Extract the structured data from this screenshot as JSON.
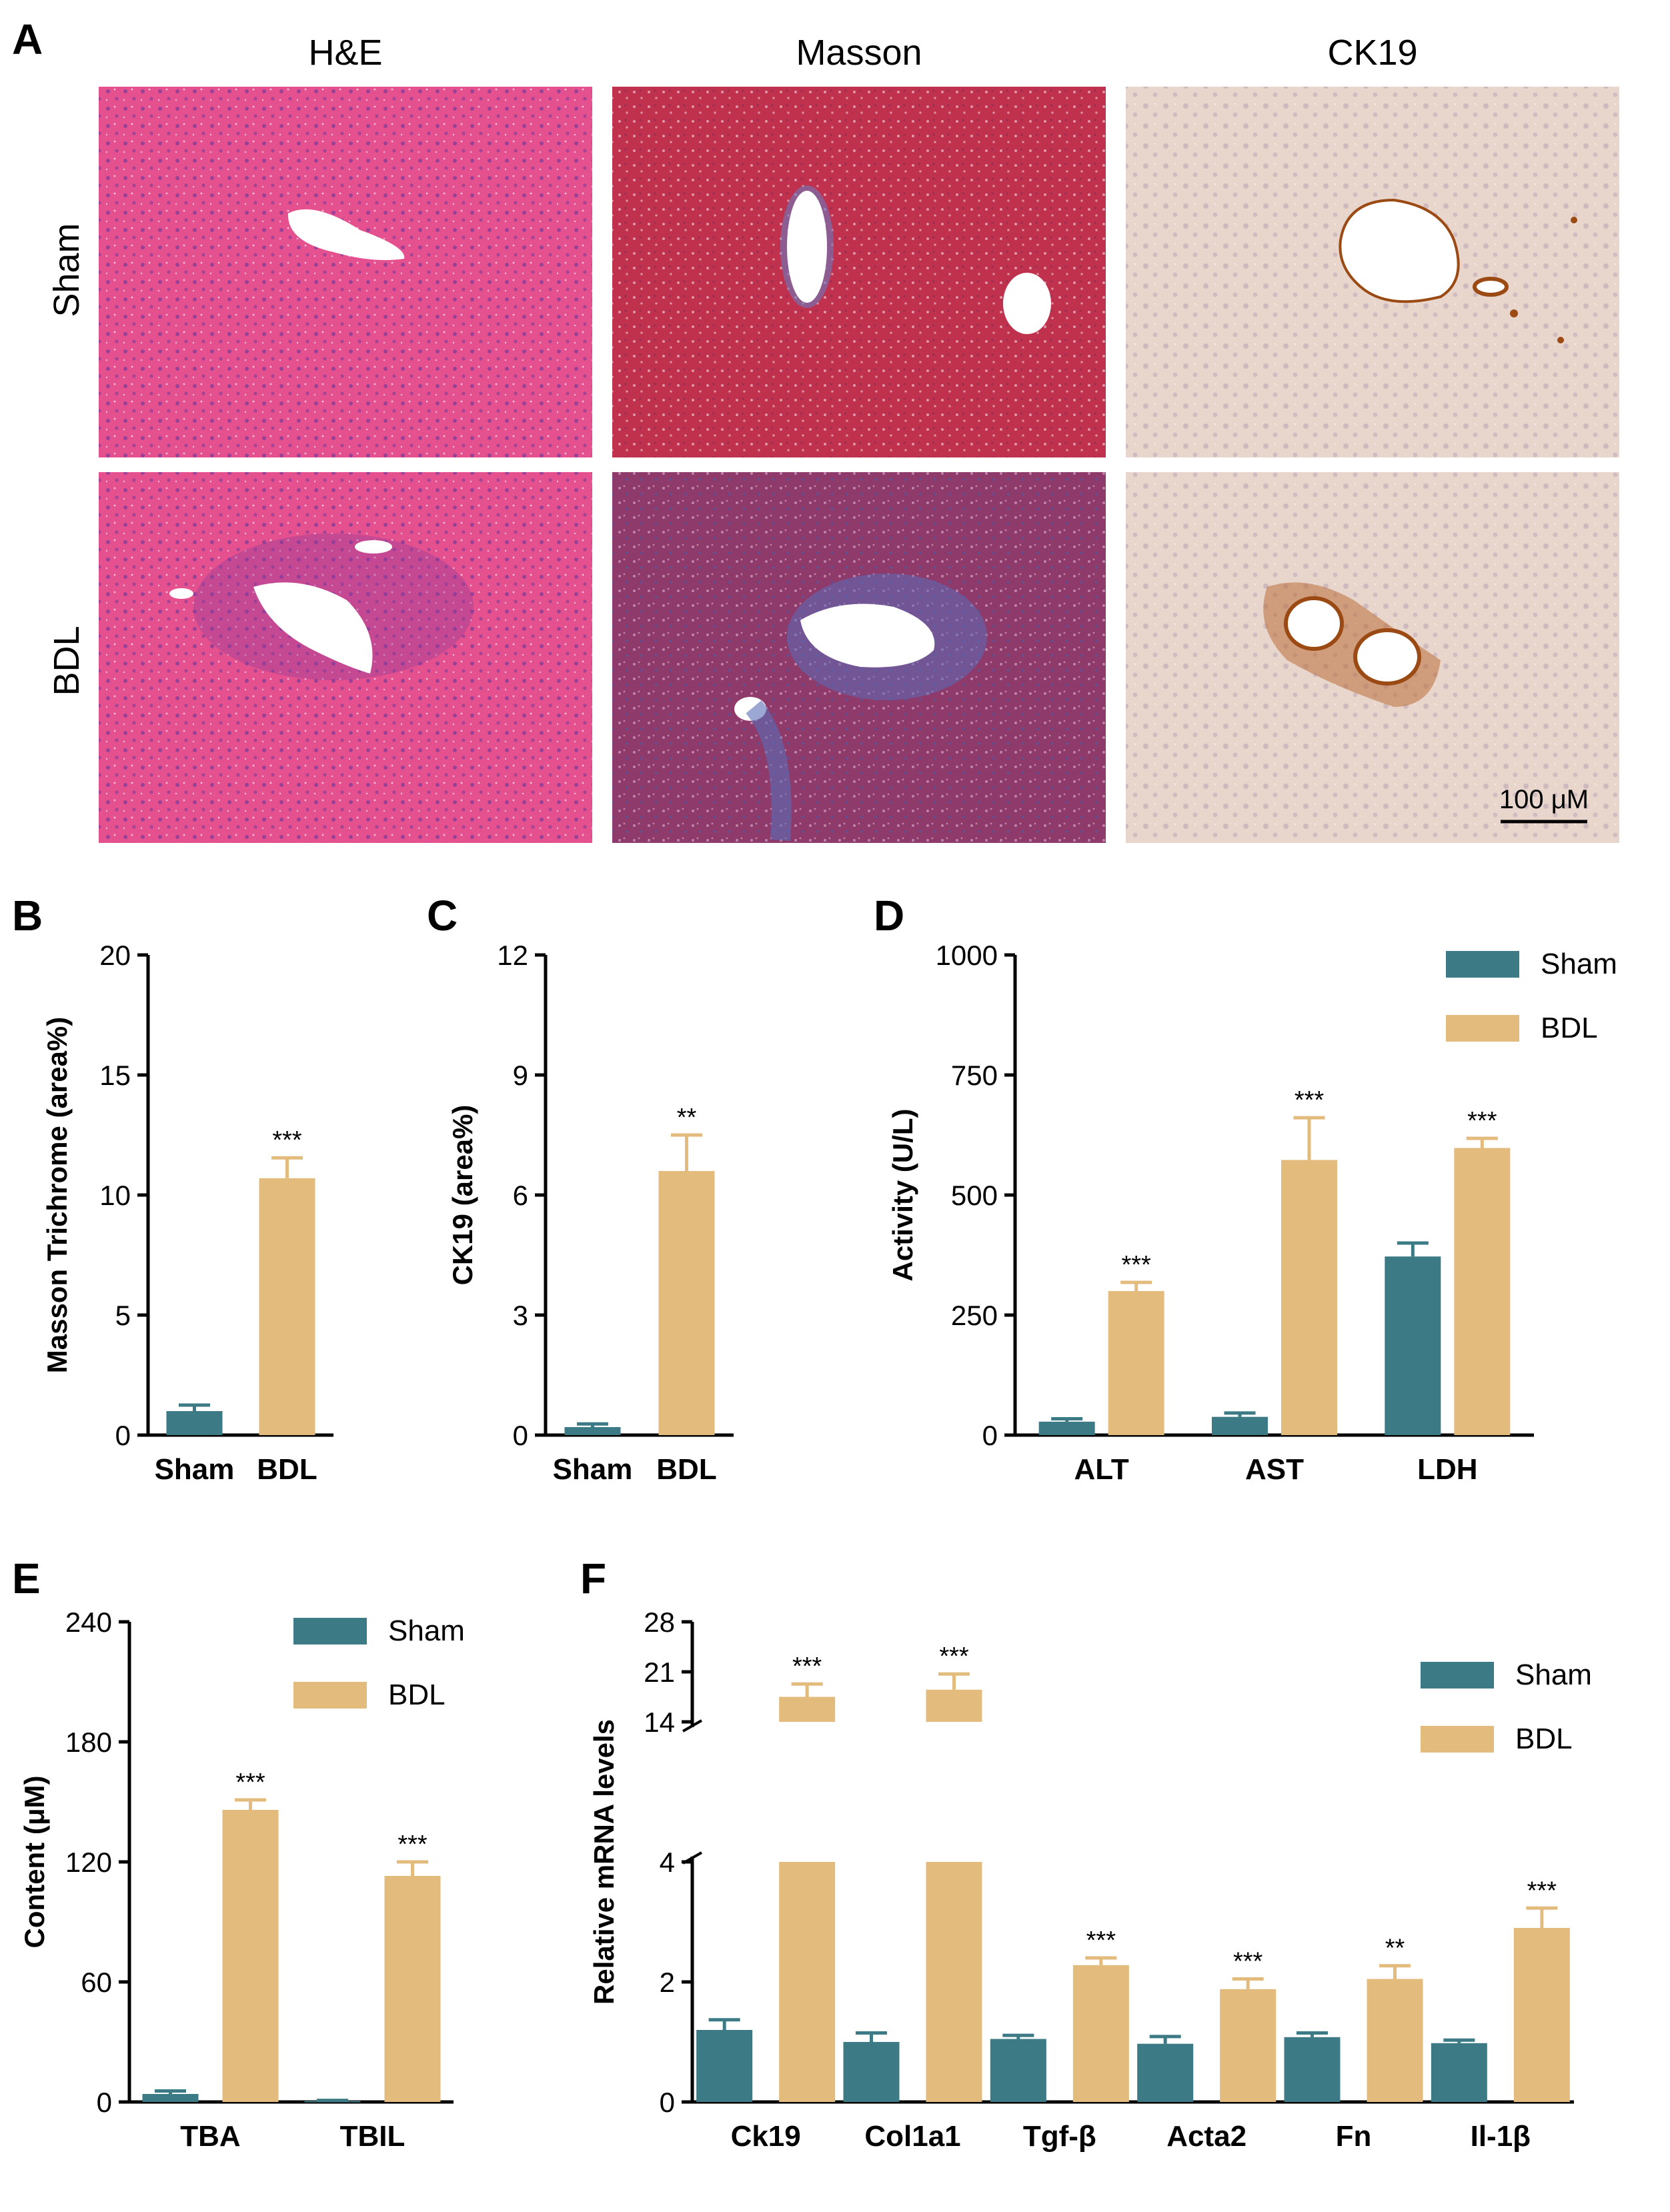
{
  "panels": {
    "A": "A",
    "B": "B",
    "C": "C",
    "D": "D",
    "E": "E",
    "F": "F"
  },
  "histology": {
    "columns": [
      "H&E",
      "Masson",
      "CK19"
    ],
    "rows": [
      "Sham",
      "BDL"
    ],
    "scale_bar": "100 μM"
  },
  "colors": {
    "sham": "#3c7b86",
    "bdl": "#e2bb7d",
    "he_bg": "#e5518f",
    "masson_sham": "#c0314e",
    "masson_bdl": "#6a4a8a",
    "ck19_bg": "#e6d2c8",
    "ck19_stain": "#9c4a14"
  },
  "chart_data": [
    {
      "id": "B",
      "type": "bar",
      "categories": [
        "Sham",
        "BDL"
      ],
      "values": [
        1.0,
        10.7
      ],
      "errors": [
        0.25,
        0.85
      ],
      "sig": [
        "",
        "***"
      ],
      "ylabel": "Masson Trichrome (area%)",
      "ylim": [
        0,
        20
      ],
      "yticks": [
        "0",
        "5",
        "10",
        "15",
        "20"
      ]
    },
    {
      "id": "C",
      "type": "bar",
      "categories": [
        "Sham",
        "BDL"
      ],
      "values": [
        0.2,
        6.6
      ],
      "errors": [
        0.08,
        0.9
      ],
      "sig": [
        "",
        "**"
      ],
      "ylabel": "CK19 (area%)",
      "ylim": [
        0,
        12
      ],
      "yticks": [
        "0",
        "3",
        "6",
        "9",
        "12"
      ]
    },
    {
      "id": "D",
      "type": "bar",
      "categories": [
        "ALT",
        "AST",
        "LDH"
      ],
      "series": [
        {
          "name": "Sham",
          "values": [
            28,
            38,
            372
          ],
          "errors": [
            6,
            8,
            28
          ],
          "sig": [
            "",
            "",
            ""
          ]
        },
        {
          "name": "BDL",
          "values": [
            300,
            573,
            598
          ],
          "errors": [
            18,
            88,
            20
          ],
          "sig": [
            "***",
            "***",
            "***"
          ]
        }
      ],
      "ylabel": "Activity (U/L)",
      "ylim": [
        0,
        1000
      ],
      "yticks": [
        "0",
        "250",
        "500",
        "750",
        "1000"
      ],
      "legend": "top-right"
    },
    {
      "id": "E",
      "type": "bar",
      "categories": [
        "TBA",
        "TBIL"
      ],
      "series": [
        {
          "name": "Sham",
          "values": [
            4,
            0.5
          ],
          "errors": [
            1.5,
            0.3
          ],
          "sig": [
            "",
            ""
          ]
        },
        {
          "name": "BDL",
          "values": [
            146,
            113
          ],
          "errors": [
            5,
            7
          ],
          "sig": [
            "***",
            "***"
          ]
        }
      ],
      "ylabel": "Content (μM)",
      "ylim": [
        0,
        240
      ],
      "yticks": [
        "0",
        "60",
        "120",
        "180",
        "240"
      ],
      "legend": "top-center"
    },
    {
      "id": "F",
      "type": "bar",
      "categories": [
        "Ck19",
        "Col1a1",
        "Tgf-β",
        "Acta2",
        "Fn",
        "Il-1β"
      ],
      "series": [
        {
          "name": "Sham",
          "values": [
            1.2,
            1.0,
            1.05,
            0.97,
            1.08,
            0.98
          ],
          "errors": [
            0.17,
            0.15,
            0.06,
            0.12,
            0.07,
            0.05
          ],
          "sig": [
            "",
            "",
            "",
            "",
            "",
            ""
          ]
        },
        {
          "name": "BDL",
          "values": [
            17.5,
            18.5,
            2.28,
            1.88,
            2.05,
            2.9
          ],
          "errors": [
            1.8,
            2.2,
            0.12,
            0.17,
            0.22,
            0.33
          ],
          "sig": [
            "***",
            "***",
            "***",
            "***",
            "**",
            "***"
          ]
        }
      ],
      "ylabel": "Relative mRNA levels",
      "axis_break": {
        "lower": [
          0,
          4
        ],
        "upper": [
          14,
          28
        ]
      },
      "yticks": [
        "0",
        "2",
        "4",
        "14",
        "21",
        "28"
      ],
      "legend": "top-right"
    }
  ]
}
